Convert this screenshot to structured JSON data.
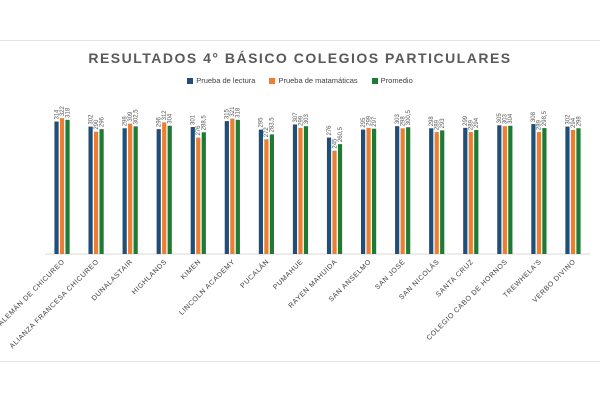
{
  "chart_data": {
    "type": "bar",
    "title": "RESULTADOS 4° BÁSICO COLEGIOS PARTICULARES",
    "xlabel": "",
    "ylabel": "",
    "ylim": [
      0,
      320
    ],
    "grid": false,
    "legend_position": "top",
    "categories": [
      "ALEMÁN DE CHICUREO",
      "ALIANZA FRANCESA CHICUREO",
      "DUNALASTAIR",
      "HIGHLANDS",
      "KIMEN",
      "LINCOLN ACADEMY",
      "PUCALÁN",
      "PUMAHUE",
      "RAYEN MAHUIDA",
      "SAN ANSELMO",
      "SAN JOSÉ",
      "SAN NICOLÁS",
      "SANTA CRUZ",
      "COLEGIO CABO DE HORNOS",
      "TREWHELA'S",
      "VERBO DIVINO"
    ],
    "series": [
      {
        "name": "Prueba de lectura",
        "color": "#1f4e79",
        "values": [
          314,
          302,
          298,
          296,
          301,
          315,
          295,
          307,
          276,
          295,
          303,
          298,
          299,
          305,
          308,
          302
        ],
        "labels": [
          "314",
          "302",
          "298",
          "296",
          "301",
          "315",
          "295",
          "307",
          "276",
          "295",
          "303",
          "298",
          "299",
          "305",
          "308",
          "302"
        ]
      },
      {
        "name": "Prueba de matamáticas",
        "color": "#ed7d31",
        "values": [
          322,
          290,
          309,
          312,
          276,
          321,
          272,
          299,
          245,
          299,
          298,
          289,
          289,
          303,
          289,
          294
        ],
        "labels": [
          "322",
          "290",
          "309",
          "312",
          "276",
          "321",
          "272",
          "299",
          "245",
          "299",
          "298",
          "289",
          "289",
          "303",
          "289",
          "294"
        ]
      },
      {
        "name": "Promedio",
        "color": "#1e7b34",
        "values": [
          318,
          296,
          302.5,
          304,
          288.5,
          318,
          283.5,
          303,
          260.5,
          297,
          300.5,
          293,
          294,
          304,
          298.5,
          298
        ],
        "labels": [
          "318",
          "296",
          "302,5",
          "304",
          "288,5",
          "318",
          "283,5",
          "303",
          "260,5",
          "297",
          "300,5",
          "293",
          "294",
          "304",
          "298,5",
          "298"
        ]
      }
    ]
  }
}
